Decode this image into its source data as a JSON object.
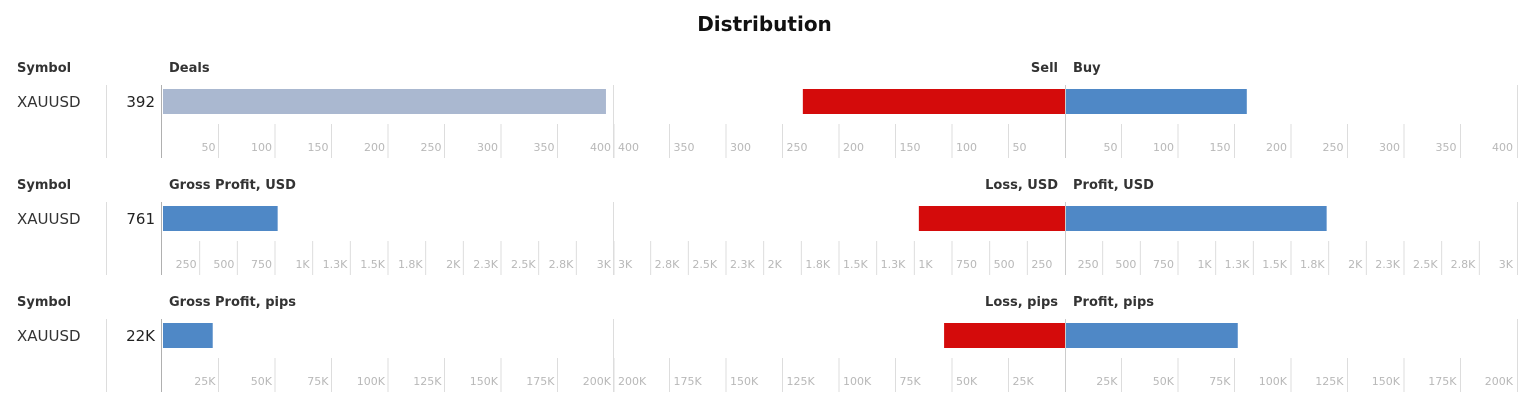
{
  "title": "Distribution",
  "colors": {
    "deals_bar": "#aab8d0",
    "sell_loss": "#d40b0b",
    "buy_profit": "#4f88c6",
    "grid": "#dddddd",
    "tick_text": "#b8b8b8"
  },
  "chart_data": [
    {
      "type": "bar",
      "symbol_header": "Symbol",
      "symbol": "XAUUSD",
      "total_label": "392",
      "main_header": "Deals",
      "left_header": "Sell",
      "right_header": "Buy",
      "main_value": 392,
      "left_value": 232,
      "right_value": 160,
      "main_ticks": [
        "50",
        "100",
        "150",
        "200",
        "250",
        "300",
        "350",
        "400"
      ],
      "left_ticks": [
        "400",
        "350",
        "300",
        "250",
        "200",
        "150",
        "100",
        "50"
      ],
      "right_ticks": [
        "50",
        "100",
        "150",
        "200",
        "250",
        "300",
        "350",
        "400"
      ],
      "xlim": [
        0,
        400
      ]
    },
    {
      "type": "bar",
      "symbol_header": "Symbol",
      "symbol": "XAUUSD",
      "total_label": "761",
      "main_header": "Gross Profit, USD",
      "left_header": "Loss, USD",
      "right_header": "Profit, USD",
      "main_value": 761,
      "left_value": 970,
      "right_value": 1730,
      "main_ticks": [
        "250",
        "500",
        "750",
        "1K",
        "1.3K",
        "1.5K",
        "1.8K",
        "2K",
        "2.3K",
        "2.5K",
        "2.8K",
        "3K"
      ],
      "left_ticks": [
        "3K",
        "2.8K",
        "2.5K",
        "2.3K",
        "2K",
        "1.8K",
        "1.5K",
        "1.3K",
        "1K",
        "750",
        "500",
        "250"
      ],
      "right_ticks": [
        "250",
        "500",
        "750",
        "1K",
        "1.3K",
        "1.5K",
        "1.8K",
        "2K",
        "2.3K",
        "2.5K",
        "2.8K",
        "3K"
      ],
      "xlim": [
        0,
        3000
      ]
    },
    {
      "type": "bar",
      "symbol_header": "Symbol",
      "symbol": "XAUUSD",
      "total_label": "22K",
      "main_header": "Gross Profit, pips",
      "left_header": "Loss, pips",
      "right_header": "Profit, pips",
      "main_value": 22000,
      "left_value": 53500,
      "right_value": 76000,
      "main_ticks": [
        "25K",
        "50K",
        "75K",
        "100K",
        "125K",
        "150K",
        "175K",
        "200K"
      ],
      "left_ticks": [
        "200K",
        "175K",
        "150K",
        "125K",
        "100K",
        "75K",
        "50K",
        "25K"
      ],
      "right_ticks": [
        "25K",
        "50K",
        "75K",
        "100K",
        "125K",
        "150K",
        "175K",
        "200K"
      ],
      "xlim": [
        0,
        200000
      ]
    }
  ]
}
